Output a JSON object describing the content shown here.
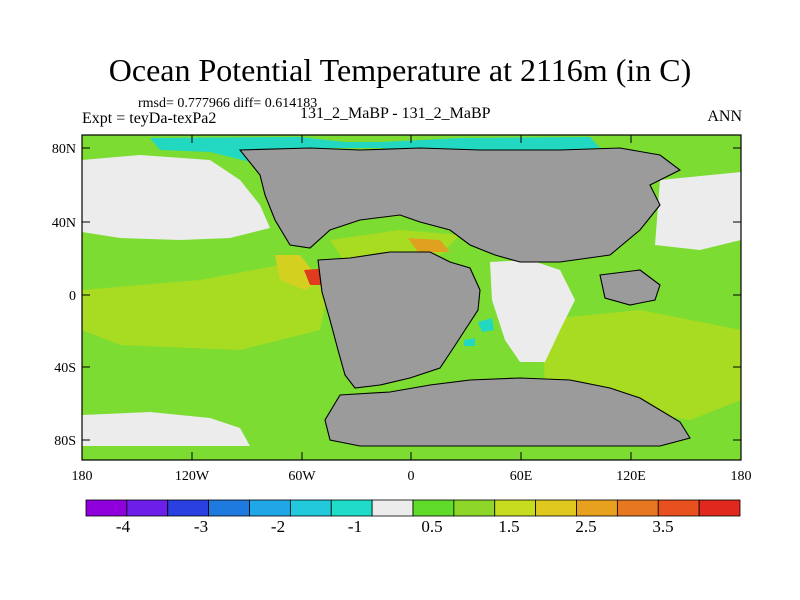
{
  "title": "Ocean Potential Temperature at 2116m (in C)",
  "stats": "rmsd= 0.777966 diff= 0.614183",
  "expt_label": "Expt = teyDa-texPa2",
  "period_label": "131_2_MaBP - 131_2_MaBP",
  "season_label": "ANN",
  "lat_ticks": [
    "80N",
    "40N",
    "0",
    "40S",
    "80S"
  ],
  "lon_ticks": [
    "180",
    "120W",
    "60W",
    "0",
    "60E",
    "120E",
    "180"
  ],
  "colorbar": {
    "colors": [
      "#8f00dc",
      "#6b1fe8",
      "#2a40e0",
      "#1f7ae0",
      "#1fa7e8",
      "#22c8dc",
      "#1fdcc8",
      "#ececec",
      "#5fdc2a",
      "#8fd62a",
      "#c8dc1f",
      "#e0c81f",
      "#e8a01f",
      "#e8781f",
      "#e8501f",
      "#e0281f"
    ],
    "labels": [
      "-4",
      "-3",
      "-2",
      "-1",
      "0.5",
      "1.5",
      "2.5",
      "3.5"
    ]
  },
  "map_colors": {
    "land": "#9b9b9b",
    "ocean_main": "#7ddc32",
    "ocean_yellowgreen": "#a8dc22",
    "ocean_yellow": "#d4d020",
    "ocean_orange": "#e0a020",
    "ocean_red": "#e03a1f",
    "near_zero": "#ececec",
    "cold_cyan": "#22d8c0",
    "coast": "#000000"
  }
}
